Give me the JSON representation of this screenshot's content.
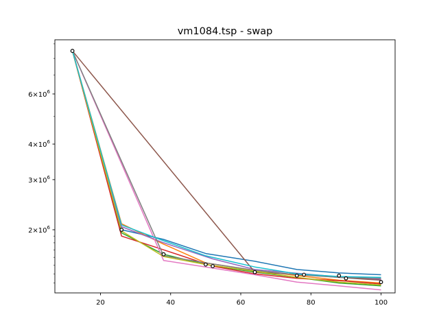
{
  "chart_data": {
    "type": "line",
    "title": "vm1084.tsp - swap",
    "xlabel": "",
    "ylabel": "",
    "y_scale": "log",
    "grid": false,
    "legend": "none",
    "xlim": [
      7,
      104
    ],
    "ylim": [
      1200000,
      9300000
    ],
    "x_ticks": [
      20,
      40,
      60,
      80,
      100
    ],
    "y_major_ticks": [
      {
        "value": 2000000,
        "label": "2 × 10^6",
        "mantissa": "2",
        "exp": "6"
      },
      {
        "value": 3000000,
        "label": "3 × 10^6",
        "mantissa": "3",
        "exp": "6"
      },
      {
        "value": 4000000,
        "label": "4 × 10^6",
        "mantissa": "4",
        "exp": "6"
      },
      {
        "value": 6000000,
        "label": "6 × 10^6",
        "mantissa": "6",
        "exp": "6"
      }
    ],
    "y_minor_ticks": [
      1300000,
      1400000,
      1500000,
      1600000,
      1700000,
      1800000,
      1900000,
      5000000,
      7000000,
      8000000,
      9000000
    ],
    "series": [
      {
        "color": "#1f77b4",
        "points": [
          [
            12,
            8500000
          ],
          [
            26,
            2000000
          ],
          [
            38,
            1850000
          ],
          [
            50,
            1650000
          ],
          [
            64,
            1550000
          ],
          [
            76,
            1450000
          ],
          [
            88,
            1410000
          ],
          [
            100,
            1390000
          ]
        ]
      },
      {
        "color": "#ff7f0e",
        "points": [
          [
            12,
            8500000
          ],
          [
            26,
            2100000
          ],
          [
            38,
            1780000
          ],
          [
            50,
            1530000
          ],
          [
            64,
            1440000
          ],
          [
            76,
            1380000
          ],
          [
            88,
            1330000
          ],
          [
            100,
            1300000
          ]
        ]
      },
      {
        "color": "#2ca02c",
        "points": [
          [
            12,
            8500000
          ],
          [
            26,
            1950000
          ],
          [
            38,
            1640000
          ],
          [
            50,
            1510000
          ],
          [
            64,
            1420000
          ],
          [
            76,
            1360000
          ],
          [
            88,
            1300000
          ],
          [
            100,
            1270000
          ]
        ]
      },
      {
        "color": "#d62728",
        "points": [
          [
            12,
            8500000
          ],
          [
            26,
            1900000
          ],
          [
            38,
            1700000
          ],
          [
            52,
            1490000
          ],
          [
            64,
            1400000
          ],
          [
            76,
            1350000
          ],
          [
            90,
            1320000
          ],
          [
            100,
            1290000
          ]
        ]
      },
      {
        "color": "#9467bd",
        "points": [
          [
            12,
            8500000
          ],
          [
            26,
            2050000
          ],
          [
            38,
            1800000
          ],
          [
            52,
            1580000
          ],
          [
            64,
            1450000
          ],
          [
            78,
            1400000
          ],
          [
            90,
            1360000
          ],
          [
            100,
            1340000
          ]
        ]
      },
      {
        "color": "#8c564b",
        "points": [
          [
            12,
            8500000
          ],
          [
            64,
            1420000
          ],
          [
            78,
            1390000
          ],
          [
            88,
            1360000
          ],
          [
            100,
            1330000
          ]
        ]
      },
      {
        "color": "#e377c2",
        "points": [
          [
            12,
            8500000
          ],
          [
            38,
            1560000
          ],
          [
            50,
            1480000
          ],
          [
            64,
            1390000
          ],
          [
            76,
            1310000
          ],
          [
            88,
            1270000
          ],
          [
            100,
            1230000
          ]
        ]
      },
      {
        "color": "#7f7f7f",
        "points": [
          [
            12,
            8500000
          ],
          [
            38,
            1620000
          ],
          [
            50,
            1530000
          ],
          [
            64,
            1440000
          ],
          [
            76,
            1390000
          ],
          [
            88,
            1360000
          ],
          [
            100,
            1350000
          ]
        ]
      },
      {
        "color": "#bcbd22",
        "points": [
          [
            12,
            8500000
          ],
          [
            26,
            1980000
          ],
          [
            38,
            1610000
          ],
          [
            50,
            1510000
          ],
          [
            64,
            1430000
          ],
          [
            76,
            1360000
          ],
          [
            88,
            1310000
          ],
          [
            100,
            1280000
          ]
        ]
      },
      {
        "color": "#17becf",
        "points": [
          [
            12,
            8500000
          ],
          [
            26,
            2080000
          ],
          [
            38,
            1830000
          ],
          [
            50,
            1620000
          ],
          [
            64,
            1480000
          ],
          [
            76,
            1400000
          ],
          [
            88,
            1370000
          ],
          [
            100,
            1360000
          ]
        ]
      }
    ],
    "best_points": [
      [
        12,
        8500000
      ],
      [
        26,
        2000000
      ],
      [
        38,
        1640000
      ],
      [
        50,
        1510000
      ],
      [
        52,
        1490000
      ],
      [
        64,
        1420000
      ],
      [
        76,
        1380000
      ],
      [
        78,
        1390000
      ],
      [
        88,
        1380000
      ],
      [
        90,
        1350000
      ],
      [
        100,
        1310000
      ]
    ]
  }
}
